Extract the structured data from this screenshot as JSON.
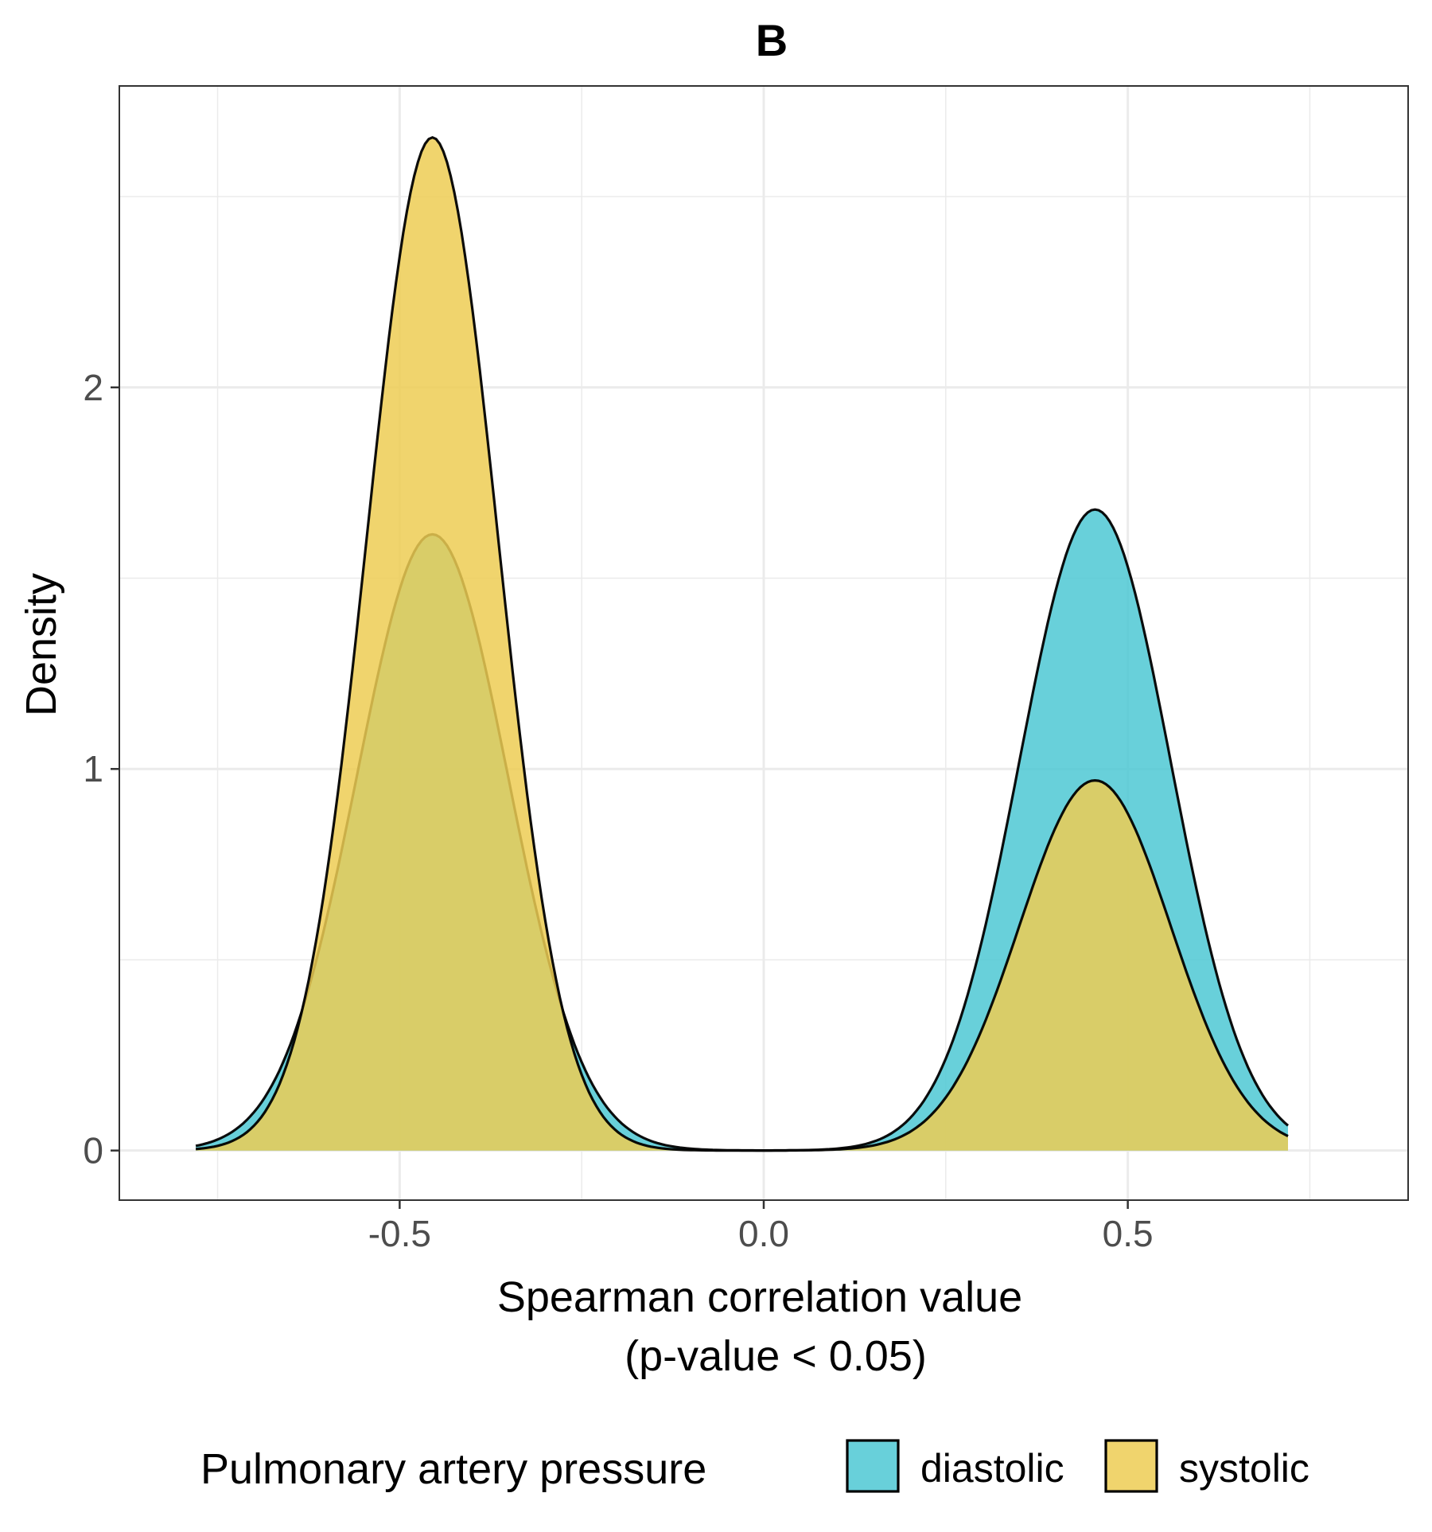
{
  "chart_data": {
    "type": "area",
    "title": "B",
    "xlabel_lines": [
      "Spearman correlation value",
      "(p-value < 0.05)"
    ],
    "ylabel": "Density",
    "xlim": [
      -0.885,
      0.885
    ],
    "ylim": [
      -0.13,
      2.79
    ],
    "x_ticks": [
      -0.5,
      0.0,
      0.5
    ],
    "x_tick_labels": [
      "-0.5",
      "0.0",
      "0.5"
    ],
    "y_ticks": [
      0,
      1,
      2
    ],
    "y_tick_labels": [
      "0",
      "1",
      "2"
    ],
    "x_minor_grid": [
      -0.75,
      -0.25,
      0.25,
      0.75
    ],
    "y_minor_grid": [
      0.5,
      1.5,
      2.5
    ],
    "grid": true,
    "legend_position": "bottom",
    "legend": {
      "title": "Pulmonary artery pressure",
      "entries": [
        "diastolic",
        "systolic"
      ]
    },
    "x_range": [
      -0.78,
      0.72
    ],
    "series": [
      {
        "name": "diastolic",
        "color": "#4DC8D3",
        "components": [
          {
            "peak_x": -0.455,
            "peak_density": 1.615,
            "sigma": 0.104
          },
          {
            "peak_x": 0.455,
            "peak_density": 1.68,
            "sigma": 0.104
          }
        ]
      },
      {
        "name": "systolic",
        "color": "#EDCD54",
        "components": [
          {
            "peak_x": -0.455,
            "peak_density": 2.655,
            "sigma": 0.09
          },
          {
            "peak_x": 0.455,
            "peak_density": 0.97,
            "sigma": 0.104
          }
        ]
      }
    ]
  }
}
